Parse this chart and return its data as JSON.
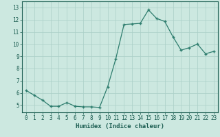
{
  "x": [
    0,
    1,
    2,
    3,
    4,
    5,
    6,
    7,
    8,
    9,
    10,
    11,
    12,
    13,
    14,
    15,
    16,
    17,
    18,
    19,
    20,
    21,
    22,
    23
  ],
  "y": [
    6.2,
    5.8,
    5.4,
    4.9,
    4.9,
    5.2,
    4.9,
    4.85,
    4.85,
    4.8,
    6.5,
    8.8,
    11.6,
    11.65,
    11.7,
    12.8,
    12.1,
    11.85,
    10.6,
    9.5,
    9.7,
    10.0,
    9.2,
    9.4
  ],
  "line_color": "#2e7d6e",
  "marker": "+",
  "marker_size": 3,
  "marker_linewidth": 1.0,
  "line_width": 0.9,
  "bg_color": "#cce8e0",
  "grid_color": "#aacfc7",
  "xlabel": "Humidex (Indice chaleur)",
  "ylabel": "",
  "title": "",
  "xlim": [
    -0.5,
    23.5
  ],
  "ylim": [
    4.4,
    13.5
  ],
  "yticks": [
    5,
    6,
    7,
    8,
    9,
    10,
    11,
    12,
    13
  ],
  "xticks": [
    0,
    1,
    2,
    3,
    4,
    5,
    6,
    7,
    8,
    9,
    10,
    11,
    12,
    13,
    14,
    15,
    16,
    17,
    18,
    19,
    20,
    21,
    22,
    23
  ],
  "tick_fontsize": 5.5,
  "xlabel_fontsize": 6.5,
  "axis_color": "#1a5c50"
}
